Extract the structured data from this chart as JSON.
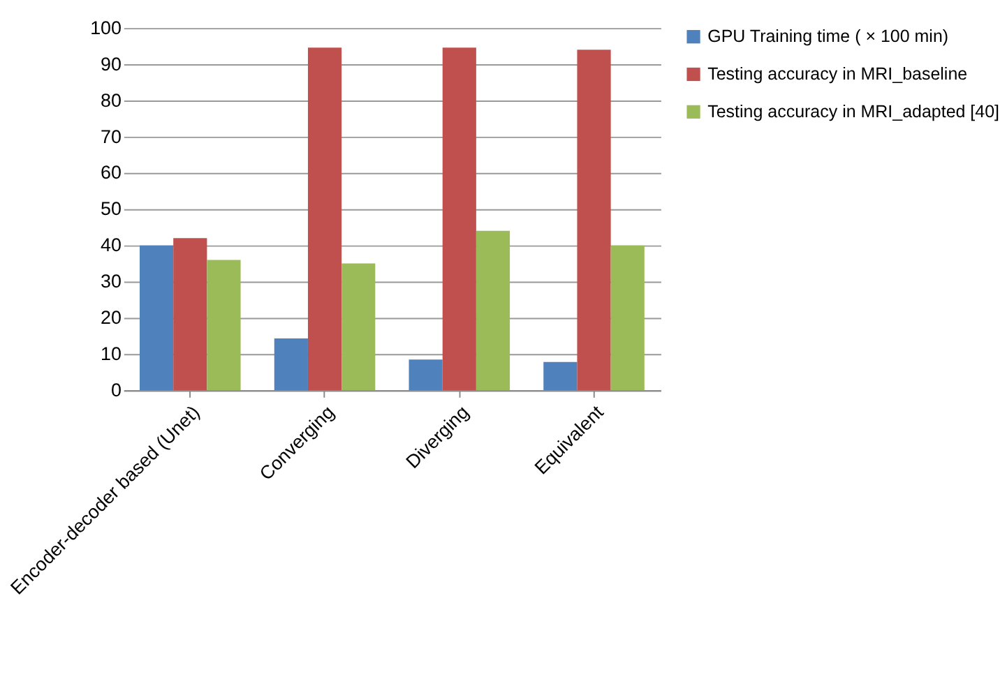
{
  "chart_data": {
    "type": "bar",
    "categories": [
      "Encoder-decoder based (Unet)",
      "Converging",
      "Diverging",
      "Equivalent"
    ],
    "series": [
      {
        "name": "GPU Training time ( × 100 min)",
        "color": "#4f81bd",
        "values": [
          40,
          14.3,
          8.5,
          7.8
        ]
      },
      {
        "name": "Testing accuracy in MRI_baseline",
        "color": "#c0504d",
        "values": [
          42,
          94.6,
          94.6,
          94
        ]
      },
      {
        "name": "Testing accuracy in MRI_adapted [40]",
        "color": "#9bbb59",
        "values": [
          36,
          35,
          44,
          40
        ]
      }
    ],
    "ylim": [
      0,
      100
    ],
    "yticks": [
      0,
      10,
      20,
      30,
      40,
      50,
      60,
      70,
      80,
      90,
      100
    ],
    "grid": "y",
    "legend": "right"
  }
}
